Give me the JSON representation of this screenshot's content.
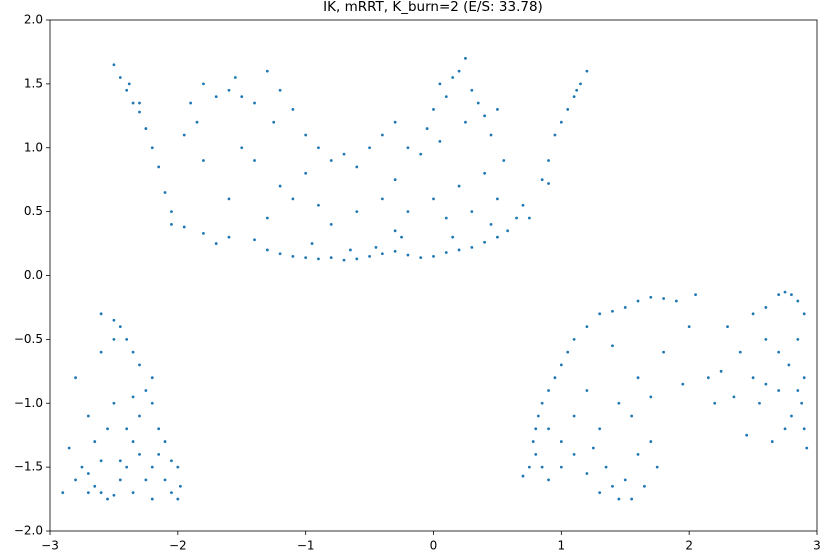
{
  "chart_data": {
    "type": "scatter",
    "title": "IK, mRRT, K_burn=2 (E/S: 33.78)",
    "color": "#1f77b4",
    "grid": false,
    "xlim": [
      -3,
      3
    ],
    "ylim": [
      -2,
      2
    ],
    "xticks": [
      {
        "value": -3,
        "label": "−3"
      },
      {
        "value": -2,
        "label": "−2"
      },
      {
        "value": -1,
        "label": "−1"
      },
      0,
      1,
      2,
      3
    ],
    "yticks": [
      {
        "value": -2,
        "label": "−2.0"
      },
      {
        "value": -1.5,
        "label": "−1.5"
      },
      {
        "value": -1,
        "label": "−1.0"
      },
      {
        "value": -0.5,
        "label": "−0.5"
      },
      {
        "value": 0,
        "label": "0.0"
      },
      {
        "value": 0.5,
        "label": "0.5"
      },
      {
        "value": 1,
        "label": "1.0"
      },
      {
        "value": 1.5,
        "label": "1.5"
      },
      {
        "value": 2,
        "label": "2.0"
      }
    ],
    "x": [
      -1.4,
      -1.3,
      -1.2,
      -1.1,
      -1.0,
      -0.9,
      -0.8,
      -0.7,
      -0.6,
      -0.5,
      -0.4,
      -0.3,
      -0.2,
      -0.1,
      0.0,
      0.1,
      0.2,
      0.3,
      0.4,
      0.5,
      0.58,
      -1.6,
      -1.7,
      -1.8,
      -1.95,
      -2.05,
      -0.45,
      -0.65,
      -0.95,
      0.15,
      -0.25,
      -2.5,
      -2.45,
      -2.4,
      -2.35,
      -2.3,
      -2.25,
      -2.2,
      -2.15,
      -2.1,
      -2.05,
      -2.3,
      -2.38,
      1.2,
      1.15,
      1.1,
      1.05,
      1.0,
      0.95,
      0.9,
      0.85,
      0.7,
      0.65,
      1.12,
      0.75,
      0.9,
      -1.6,
      -1.5,
      -1.4,
      -1.3,
      -1.55,
      -1.7,
      -1.8,
      -1.9,
      -1.85,
      -1.95,
      -1.2,
      -1.1,
      -1.0,
      -0.9,
      -0.8,
      -0.7,
      -0.6,
      -0.5,
      -0.4,
      -0.3,
      -0.2,
      -0.1,
      0.0,
      0.05,
      0.1,
      0.15,
      0.2,
      0.25,
      0.3,
      0.35,
      0.4,
      -0.05,
      0.05,
      0.45,
      0.5,
      0.55,
      -1.4,
      -1.2,
      -1.1,
      -1.3,
      -0.9,
      -0.8,
      -0.6,
      -0.4,
      -0.3,
      -0.2,
      0.0,
      0.2,
      0.3,
      0.4,
      0.5,
      0.45,
      -1.6,
      -1.8,
      -1.5,
      -0.3,
      0.1,
      -1.0,
      -1.25,
      0.25,
      -2.9,
      -2.8,
      -2.75,
      -2.7,
      -2.65,
      -2.6,
      -2.55,
      -2.5,
      -2.45,
      -2.4,
      -2.35,
      -2.3,
      -2.25,
      -2.3,
      -2.35,
      -2.4,
      -2.45,
      -2.5,
      -2.6,
      -2.2,
      -2.15,
      -2.1,
      -2.05,
      -2.0,
      -1.98,
      -2.0,
      -2.1,
      -2.2,
      -2.3,
      -2.4,
      -2.5,
      -2.55,
      -2.65,
      -2.7,
      -2.8,
      -2.85,
      -2.6,
      -2.2,
      -2.15,
      -2.25,
      -2.35,
      -2.45,
      -2.6,
      -2.7,
      -2.5,
      -2.35,
      -2.05,
      -2.2,
      0.7,
      0.75,
      0.8,
      0.78,
      0.8,
      0.82,
      0.85,
      0.9,
      0.95,
      1.0,
      1.05,
      1.1,
      1.2,
      1.3,
      1.4,
      1.5,
      1.6,
      1.7,
      1.8,
      1.9,
      2.05,
      0.9,
      1.0,
      1.1,
      1.2,
      1.3,
      1.4,
      1.5,
      1.45,
      1.35,
      1.6,
      1.7,
      1.55,
      1.45,
      1.3,
      1.2,
      1.1,
      1.0,
      0.9,
      1.6,
      1.8,
      1.95,
      2.0,
      1.4,
      1.7,
      1.25,
      0.85,
      1.65,
      1.75,
      1.55,
      2.5,
      2.6,
      2.7,
      2.75,
      2.8,
      2.85,
      2.9,
      2.85,
      2.9,
      2.88,
      2.9,
      2.92,
      2.8,
      2.7,
      2.6,
      2.5,
      2.4,
      2.3,
      2.25,
      2.2,
      2.55,
      2.65,
      2.75,
      2.85,
      2.45,
      2.6,
      2.78,
      2.35,
      2.15,
      2.7
    ],
    "values": [
      0.28,
      0.2,
      0.17,
      0.15,
      0.14,
      0.13,
      0.14,
      0.12,
      0.13,
      0.15,
      0.17,
      0.19,
      0.16,
      0.14,
      0.15,
      0.18,
      0.2,
      0.22,
      0.26,
      0.3,
      0.35,
      0.3,
      0.25,
      0.33,
      0.38,
      0.4,
      0.22,
      0.2,
      0.25,
      0.3,
      0.3,
      1.65,
      1.55,
      1.45,
      1.35,
      1.28,
      1.15,
      1.0,
      0.85,
      0.65,
      0.5,
      1.35,
      1.5,
      1.6,
      1.5,
      1.4,
      1.3,
      1.2,
      1.1,
      0.9,
      0.75,
      0.55,
      0.45,
      1.45,
      0.45,
      0.72,
      1.45,
      1.4,
      1.35,
      1.6,
      1.55,
      1.4,
      1.5,
      1.35,
      1.2,
      1.1,
      1.45,
      1.3,
      1.1,
      1.0,
      0.9,
      0.95,
      0.85,
      1.0,
      1.1,
      1.2,
      1.0,
      0.95,
      1.3,
      1.5,
      1.4,
      1.55,
      1.6,
      1.7,
      1.45,
      1.35,
      1.25,
      1.15,
      1.05,
      1.1,
      1.3,
      0.9,
      0.9,
      0.7,
      0.6,
      0.45,
      0.55,
      0.4,
      0.5,
      0.6,
      0.75,
      0.5,
      0.6,
      0.7,
      0.5,
      0.8,
      0.6,
      0.4,
      0.6,
      0.9,
      1.0,
      0.35,
      0.45,
      0.8,
      1.2,
      1.2,
      -1.7,
      -1.6,
      -1.5,
      -1.55,
      -1.65,
      -1.7,
      -1.75,
      -1.72,
      -1.6,
      -1.5,
      -1.3,
      -1.1,
      -0.9,
      -0.7,
      -0.6,
      -0.5,
      -0.4,
      -0.35,
      -0.3,
      -1.0,
      -1.2,
      -1.3,
      -1.45,
      -1.5,
      -1.65,
      -1.75,
      -1.6,
      -1.5,
      -1.4,
      -1.2,
      -1.0,
      -1.2,
      -1.3,
      -1.1,
      -0.8,
      -1.35,
      -0.6,
      -0.8,
      -1.4,
      -1.6,
      -1.7,
      -1.45,
      -1.45,
      -1.7,
      -0.5,
      -0.95,
      -1.7,
      -1.75,
      -1.57,
      -1.5,
      -1.4,
      -1.3,
      -1.2,
      -1.1,
      -1.0,
      -0.9,
      -0.8,
      -0.7,
      -0.6,
      -0.5,
      -0.4,
      -0.3,
      -0.28,
      -0.25,
      -0.2,
      -0.17,
      -0.18,
      -0.2,
      -0.15,
      -1.6,
      -1.5,
      -1.4,
      -1.55,
      -1.7,
      -1.65,
      -1.6,
      -1.75,
      -1.5,
      -1.4,
      -1.3,
      -1.1,
      -1.0,
      -1.2,
      -0.9,
      -1.1,
      -1.3,
      -1.2,
      -0.8,
      -0.6,
      -0.85,
      -0.4,
      -0.55,
      -0.95,
      -1.35,
      -1.5,
      -1.65,
      -1.5,
      -1.75,
      -0.3,
      -0.25,
      -0.15,
      -0.13,
      -0.15,
      -0.2,
      -0.3,
      -0.5,
      -0.8,
      -1.0,
      -1.2,
      -1.35,
      -1.1,
      -0.9,
      -0.85,
      -0.8,
      -0.6,
      -0.4,
      -0.75,
      -1.0,
      -1.0,
      -1.3,
      -1.2,
      -0.9,
      -1.25,
      -0.5,
      -0.7,
      -0.95,
      -0.8,
      -0.6
    ]
  }
}
